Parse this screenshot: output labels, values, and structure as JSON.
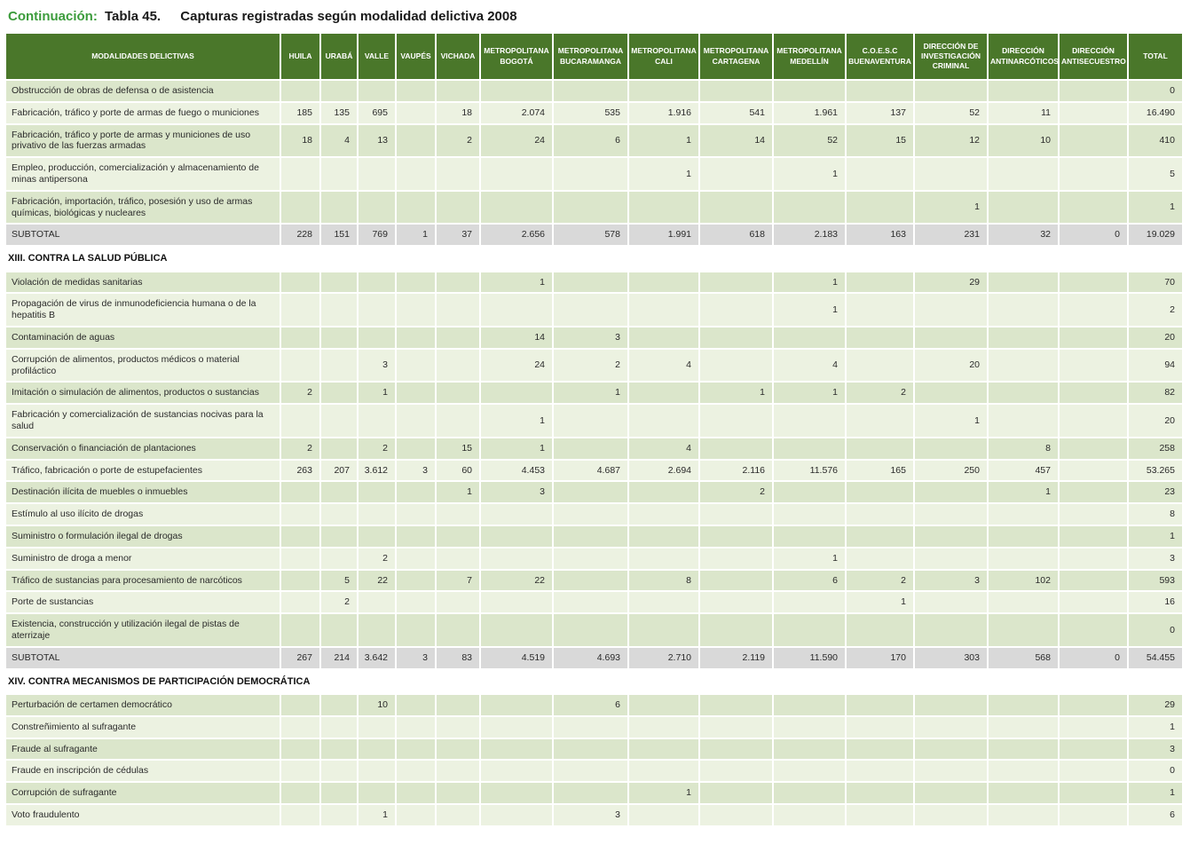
{
  "title": {
    "prefix": "Continuación:",
    "table_ref": "Tabla 45.",
    "text": "Capturas registradas según modalidad delictiva 2008"
  },
  "colors": {
    "accent_green": "#3c9c3c",
    "header_bg": "#4a772a",
    "row_dark": "#dbe6cb",
    "row_light": "#ecf2e1",
    "subtotal_bg": "#d9d9d9"
  },
  "table": {
    "columns": [
      "MODALIDADES DELICTIVAS",
      "HUILA",
      "URABÁ",
      "VALLE",
      "VAUPÉS",
      "VICHADA",
      "METROPOLITANA BOGOTÁ",
      "METROPOLITANA BUCARAMANGA",
      "METROPOLITANA CALI",
      "METROPOLITANA CARTAGENA",
      "METROPOLITANA MEDELLÍN",
      "C.O.E.S.C BUENAVENTURA",
      "DIRECCIÓN DE INVESTIGACIÓN CRIMINAL",
      "DIRECCIÓN ANTINARCÓTICOS",
      "DIRECCIÓN ANTISECUESTRO",
      "TOTAL"
    ],
    "rows": [
      {
        "type": "data",
        "label": "Obstrucción de obras de defensa o de asistencia",
        "values": [
          "",
          "",
          "",
          "",
          "",
          "",
          "",
          "",
          "",
          "",
          "",
          "",
          "",
          "",
          "0"
        ]
      },
      {
        "type": "data",
        "label": "Fabricación, tráfico y porte de armas de fuego o municiones",
        "values": [
          "185",
          "135",
          "695",
          "",
          "18",
          "2.074",
          "535",
          "1.916",
          "541",
          "1.961",
          "137",
          "52",
          "11",
          "",
          "16.490"
        ]
      },
      {
        "type": "data",
        "label": "Fabricación, tráfico y porte de armas y municiones de uso privativo de las fuerzas armadas",
        "values": [
          "18",
          "4",
          "13",
          "",
          "2",
          "24",
          "6",
          "1",
          "14",
          "52",
          "15",
          "12",
          "10",
          "",
          "410"
        ]
      },
      {
        "type": "data",
        "label": "Empleo, producción, comercialización y almacenamiento de minas antipersona",
        "values": [
          "",
          "",
          "",
          "",
          "",
          "",
          "",
          "1",
          "",
          "1",
          "",
          "",
          "",
          "",
          "5"
        ]
      },
      {
        "type": "data",
        "label": "Fabricación, importación, tráfico, posesión y uso de armas químicas, biológicas y nucleares",
        "values": [
          "",
          "",
          "",
          "",
          "",
          "",
          "",
          "",
          "",
          "",
          "",
          "1",
          "",
          "",
          "1"
        ]
      },
      {
        "type": "subtotal",
        "label": "SUBTOTAL",
        "values": [
          "228",
          "151",
          "769",
          "1",
          "37",
          "2.656",
          "578",
          "1.991",
          "618",
          "2.183",
          "163",
          "231",
          "32",
          "0",
          "19.029"
        ]
      },
      {
        "type": "section",
        "label": "XIII. CONTRA LA SALUD PÚBLICA"
      },
      {
        "type": "data",
        "label": "Violación de medidas sanitarias",
        "values": [
          "",
          "",
          "",
          "",
          "",
          "1",
          "",
          "",
          "",
          "1",
          "",
          "29",
          "",
          "",
          "70"
        ]
      },
      {
        "type": "data",
        "label": "Propagación de virus de inmunodeficiencia humana o de la hepatitis B",
        "values": [
          "",
          "",
          "",
          "",
          "",
          "",
          "",
          "",
          "",
          "1",
          "",
          "",
          "",
          "",
          "2"
        ]
      },
      {
        "type": "data",
        "label": "Contaminación de aguas",
        "values": [
          "",
          "",
          "",
          "",
          "",
          "14",
          "3",
          "",
          "",
          "",
          "",
          "",
          "",
          "",
          "20"
        ]
      },
      {
        "type": "data",
        "label": "Corrupción de alimentos, productos médicos o material profiláctico",
        "values": [
          "",
          "",
          "3",
          "",
          "",
          "24",
          "2",
          "4",
          "",
          "4",
          "",
          "20",
          "",
          "",
          "94"
        ]
      },
      {
        "type": "data",
        "label": "Imitación o simulación de alimentos, productos o sustancias",
        "values": [
          "2",
          "",
          "1",
          "",
          "",
          "",
          "1",
          "",
          "1",
          "1",
          "2",
          "",
          "",
          "",
          "82"
        ]
      },
      {
        "type": "data",
        "label": "Fabricación y comercialización de sustancias nocivas para la salud",
        "values": [
          "",
          "",
          "",
          "",
          "",
          "1",
          "",
          "",
          "",
          "",
          "",
          "1",
          "",
          "",
          "20"
        ]
      },
      {
        "type": "data",
        "label": "Conservación o financiación de plantaciones",
        "values": [
          "2",
          "",
          "2",
          "",
          "15",
          "1",
          "",
          "4",
          "",
          "",
          "",
          "",
          "8",
          "",
          "258"
        ]
      },
      {
        "type": "data",
        "label": "Tráfico, fabricación o porte de estupefacientes",
        "values": [
          "263",
          "207",
          "3.612",
          "3",
          "60",
          "4.453",
          "4.687",
          "2.694",
          "2.116",
          "11.576",
          "165",
          "250",
          "457",
          "",
          "53.265"
        ]
      },
      {
        "type": "data",
        "label": "Destinación ilícita de muebles o inmuebles",
        "values": [
          "",
          "",
          "",
          "",
          "1",
          "3",
          "",
          "",
          "2",
          "",
          "",
          "",
          "1",
          "",
          "23"
        ]
      },
      {
        "type": "data",
        "label": "Estímulo al uso ilícito de drogas",
        "values": [
          "",
          "",
          "",
          "",
          "",
          "",
          "",
          "",
          "",
          "",
          "",
          "",
          "",
          "",
          "8"
        ]
      },
      {
        "type": "data",
        "label": "Suministro o formulación ilegal de drogas",
        "values": [
          "",
          "",
          "",
          "",
          "",
          "",
          "",
          "",
          "",
          "",
          "",
          "",
          "",
          "",
          "1"
        ]
      },
      {
        "type": "data",
        "label": "Suministro de droga a menor",
        "values": [
          "",
          "",
          "2",
          "",
          "",
          "",
          "",
          "",
          "",
          "1",
          "",
          "",
          "",
          "",
          "3"
        ]
      },
      {
        "type": "data",
        "label": "Tráfico de sustancias para procesamiento de narcóticos",
        "values": [
          "",
          "5",
          "22",
          "",
          "7",
          "22",
          "",
          "8",
          "",
          "6",
          "2",
          "3",
          "102",
          "",
          "593"
        ]
      },
      {
        "type": "data",
        "label": "Porte de sustancias",
        "values": [
          "",
          "2",
          "",
          "",
          "",
          "",
          "",
          "",
          "",
          "",
          "1",
          "",
          "",
          "",
          "16"
        ]
      },
      {
        "type": "data",
        "label": "Existencia, construcción y utilización ilegal de pistas de aterrizaje",
        "values": [
          "",
          "",
          "",
          "",
          "",
          "",
          "",
          "",
          "",
          "",
          "",
          "",
          "",
          "",
          "0"
        ]
      },
      {
        "type": "subtotal",
        "label": "SUBTOTAL",
        "values": [
          "267",
          "214",
          "3.642",
          "3",
          "83",
          "4.519",
          "4.693",
          "2.710",
          "2.119",
          "11.590",
          "170",
          "303",
          "568",
          "0",
          "54.455"
        ]
      },
      {
        "type": "section",
        "label": "XIV. CONTRA MECANISMOS DE PARTICIPACIÓN DEMOCRÁTICA"
      },
      {
        "type": "data",
        "label": "Perturbación de certamen democrático",
        "values": [
          "",
          "",
          "10",
          "",
          "",
          "",
          "6",
          "",
          "",
          "",
          "",
          "",
          "",
          "",
          "29"
        ]
      },
      {
        "type": "data",
        "label": "Constreñimiento al sufragante",
        "values": [
          "",
          "",
          "",
          "",
          "",
          "",
          "",
          "",
          "",
          "",
          "",
          "",
          "",
          "",
          "1"
        ]
      },
      {
        "type": "data",
        "label": "Fraude al sufragante",
        "values": [
          "",
          "",
          "",
          "",
          "",
          "",
          "",
          "",
          "",
          "",
          "",
          "",
          "",
          "",
          "3"
        ]
      },
      {
        "type": "data",
        "label": "Fraude en inscripción de cédulas",
        "values": [
          "",
          "",
          "",
          "",
          "",
          "",
          "",
          "",
          "",
          "",
          "",
          "",
          "",
          "",
          "0"
        ]
      },
      {
        "type": "data",
        "label": "Corrupción de sufragante",
        "values": [
          "",
          "",
          "",
          "",
          "",
          "",
          "",
          "1",
          "",
          "",
          "",
          "",
          "",
          "",
          "1"
        ]
      },
      {
        "type": "data",
        "label": "Voto fraudulento",
        "values": [
          "",
          "",
          "1",
          "",
          "",
          "",
          "3",
          "",
          "",
          "",
          "",
          "",
          "",
          "",
          "6"
        ]
      }
    ]
  }
}
